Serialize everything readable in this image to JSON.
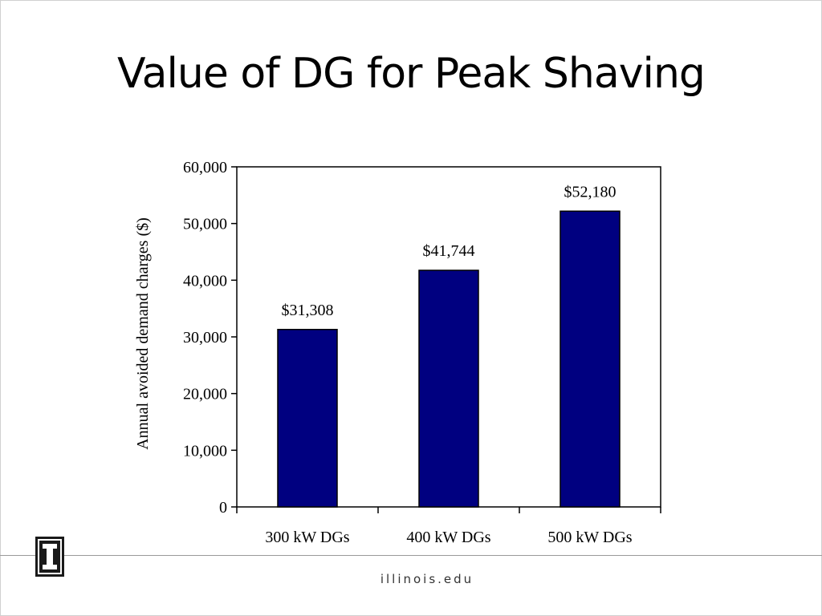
{
  "slide": {
    "title": "Value of DG for Peak Shaving",
    "footer_text": "illinois.edu"
  },
  "logo": {
    "icon": "block-i-logo-icon",
    "color": "#1a1a1a"
  },
  "chart_data": {
    "type": "bar",
    "categories": [
      "300 kW DGs",
      "400 kW DGs",
      "500 kW DGs"
    ],
    "values": [
      31308,
      41744,
      52180
    ],
    "data_labels": [
      "$31,308",
      "$41,744",
      "$52,180"
    ],
    "ylabel": "Annual avoided demand charges ($)",
    "xlabel": "",
    "ylim": [
      0,
      60000
    ],
    "yticks": [
      0,
      10000,
      20000,
      30000,
      40000,
      50000,
      60000
    ],
    "ytick_labels": [
      "0",
      "10,000",
      "20,000",
      "30,000",
      "40,000",
      "50,000",
      "60,000"
    ],
    "bar_color": "#000080",
    "grid": false,
    "legend": "none"
  }
}
